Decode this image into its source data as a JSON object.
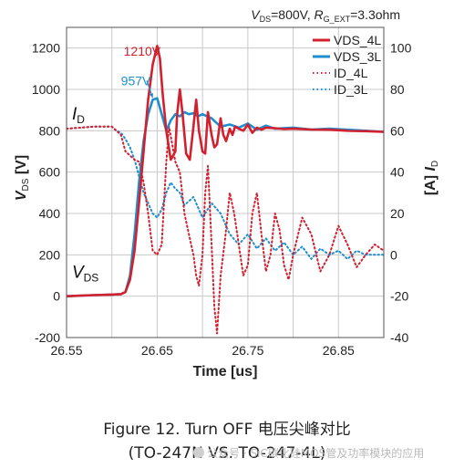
{
  "chart_data": {
    "type": "line",
    "conditions": {
      "v": "V",
      "v_sub": "DS",
      "v_val": "=800V, ",
      "r": "R",
      "r_sub": "G_EXT",
      "r_val": "=3.3ohm"
    },
    "xlabel": "Time [us]",
    "ylabel_left": {
      "main": "V",
      "sub": "DS",
      "unit": "[V]"
    },
    "ylabel_right": {
      "main": "I",
      "sub": "D",
      "unit": "[A]"
    },
    "xlim": [
      26.55,
      26.9
    ],
    "ylim_left": [
      -200,
      1300
    ],
    "ylim_right": [
      -40,
      110
    ],
    "x_ticks": [
      "26.55",
      "26.65",
      "26.75",
      "26.85"
    ],
    "x_tick_values": [
      26.55,
      26.65,
      26.75,
      26.85
    ],
    "y_ticks_left": [
      "-200",
      "0",
      "200",
      "400",
      "600",
      "800",
      "1000",
      "1200"
    ],
    "y_tick_values_left": [
      -200,
      0,
      200,
      400,
      600,
      800,
      1000,
      1200
    ],
    "y_ticks_right": [
      "-40",
      "-20",
      "0",
      "20",
      "40",
      "60",
      "80",
      "100"
    ],
    "y_tick_values_right": [
      -40,
      -20,
      0,
      20,
      40,
      60,
      80,
      100
    ],
    "grid": true,
    "legend_position": "top-right",
    "colors": {
      "red": "#d2202f",
      "blue": "#1f8ecf",
      "grid": "#c8c8c8"
    },
    "annotations": [
      {
        "text": "1210V",
        "x": 26.613,
        "y": 1163,
        "color": "#d2202f",
        "arrow_to": [
          26.649,
          1205
        ]
      },
      {
        "text": "957V",
        "x": 26.61,
        "y": 1020,
        "color": "#1f8ecf",
        "arrow_to": [
          26.645,
          960
        ]
      }
    ],
    "curve_labels": {
      "id": {
        "main": "I",
        "sub": "D",
        "x": 26.556,
        "y": 855
      },
      "vds": {
        "main": "V",
        "sub": "DS",
        "x": 26.556,
        "y": 90
      }
    },
    "series": [
      {
        "name": "VDS_4L",
        "axis": "left",
        "color": "#d2202f",
        "style": "solid",
        "width": 2.6,
        "x": [
          26.55,
          26.58,
          26.6,
          26.61,
          26.615,
          26.62,
          26.625,
          26.63,
          26.635,
          26.64,
          26.645,
          26.65,
          26.653,
          26.656,
          26.66,
          26.665,
          26.67,
          26.672,
          26.675,
          26.678,
          26.682,
          26.686,
          26.69,
          26.693,
          26.696,
          26.7,
          26.703,
          26.706,
          26.71,
          26.713,
          26.716,
          26.72,
          26.723,
          26.726,
          26.73,
          26.733,
          26.736,
          26.74,
          26.745,
          26.75,
          26.755,
          26.76,
          26.765,
          26.77,
          26.78,
          26.79,
          26.8,
          26.82,
          26.84,
          26.86,
          26.88,
          26.9
        ],
        "y": [
          0,
          5,
          8,
          10,
          20,
          80,
          220,
          450,
          700,
          950,
          1120,
          1210,
          1150,
          980,
          800,
          660,
          700,
          880,
          1000,
          880,
          690,
          660,
          820,
          950,
          800,
          700,
          690,
          890,
          780,
          720,
          735,
          860,
          780,
          750,
          810,
          780,
          820,
          810,
          800,
          830,
          790,
          815,
          805,
          815,
          812,
          808,
          810,
          806,
          805,
          800,
          798,
          795
        ]
      },
      {
        "name": "VDS_3L",
        "axis": "left",
        "color": "#1f8ecf",
        "style": "solid",
        "width": 2.6,
        "x": [
          26.55,
          26.58,
          26.6,
          26.61,
          26.615,
          26.62,
          26.625,
          26.63,
          26.635,
          26.64,
          26.645,
          26.65,
          26.655,
          26.66,
          26.665,
          26.67,
          26.675,
          26.68,
          26.685,
          26.69,
          26.695,
          26.7,
          26.71,
          26.72,
          26.73,
          26.74,
          26.75,
          26.76,
          26.77,
          26.78,
          26.8,
          26.82,
          26.84,
          26.86,
          26.88,
          26.9
        ],
        "y": [
          0,
          5,
          8,
          10,
          20,
          100,
          300,
          550,
          750,
          880,
          950,
          957,
          880,
          800,
          850,
          880,
          870,
          890,
          880,
          885,
          870,
          880,
          860,
          820,
          830,
          815,
          835,
          805,
          825,
          810,
          815,
          806,
          810,
          805,
          800,
          795
        ]
      },
      {
        "name": "ID_4L",
        "axis": "right",
        "color": "#d2202f",
        "style": "dotted",
        "width": 2,
        "x": [
          26.55,
          26.58,
          26.6,
          26.605,
          26.61,
          26.615,
          26.62,
          26.625,
          26.63,
          26.635,
          26.64,
          26.645,
          26.65,
          26.655,
          26.66,
          26.663,
          26.666,
          26.67,
          26.675,
          26.68,
          26.685,
          26.69,
          26.693,
          26.696,
          26.7,
          26.703,
          26.706,
          26.71,
          26.713,
          26.716,
          26.72,
          26.725,
          26.73,
          26.735,
          26.74,
          26.745,
          26.75,
          26.755,
          26.76,
          26.765,
          26.77,
          26.775,
          26.78,
          26.785,
          26.79,
          26.795,
          26.8,
          26.81,
          26.82,
          26.83,
          26.84,
          26.85,
          26.86,
          26.87,
          26.88,
          26.89,
          26.9
        ],
        "y": [
          61,
          62,
          62,
          60,
          58,
          50,
          48,
          46,
          45,
          35,
          20,
          2,
          0,
          5,
          45,
          62,
          55,
          45,
          40,
          20,
          10,
          0,
          -10,
          -15,
          0,
          30,
          43,
          5,
          -25,
          -38,
          -10,
          8,
          30,
          20,
          5,
          -10,
          -5,
          20,
          30,
          10,
          -8,
          0,
          20,
          12,
          -5,
          -12,
          0,
          18,
          10,
          -8,
          0,
          14,
          5,
          -6,
          0,
          5,
          2
        ]
      },
      {
        "name": "ID_3L",
        "axis": "right",
        "color": "#1f8ecf",
        "style": "dotted",
        "width": 2,
        "x": [
          26.55,
          26.58,
          26.6,
          26.605,
          26.61,
          26.615,
          26.62,
          26.625,
          26.63,
          26.635,
          26.64,
          26.645,
          26.65,
          26.655,
          26.66,
          26.665,
          26.67,
          26.675,
          26.68,
          26.69,
          26.7,
          26.71,
          26.72,
          26.73,
          26.74,
          26.75,
          26.76,
          26.77,
          26.78,
          26.79,
          26.8,
          26.81,
          26.82,
          26.83,
          26.84,
          26.85,
          26.86,
          26.87,
          26.88,
          26.9
        ],
        "y": [
          61,
          62,
          62,
          60,
          59,
          56,
          52,
          46,
          38,
          30,
          25,
          20,
          18,
          22,
          30,
          35,
          32,
          30,
          24,
          28,
          18,
          25,
          20,
          10,
          5,
          10,
          3,
          8,
          2,
          6,
          0,
          4,
          -2,
          3,
          0,
          2,
          -2,
          2,
          0,
          0
        ]
      }
    ]
  },
  "caption": {
    "line1": "Figure 12. Turn OFF 电压尖峰对比",
    "line2": "(TO-247N VS. TO-247-4L)"
  },
  "watermark": "公众号 · SiC碳化硅MOS管及功率模块的应用"
}
